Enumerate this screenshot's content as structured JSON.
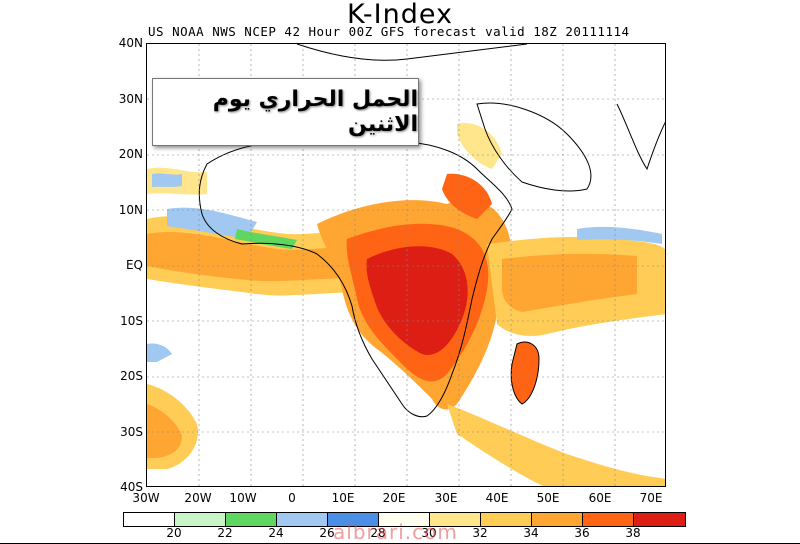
{
  "title": "K-Index",
  "subtitle": "US NOAA NWS NCEP 42 Hour 00Z GFS forecast valid 18Z 20111114",
  "overlay_text": "الحمل الحراري يوم الاثنين",
  "watermark": "albrari.com",
  "lat_labels": [
    "40N",
    "30N",
    "20N",
    "10N",
    "EQ",
    "10S",
    "20S",
    "30S",
    "40S"
  ],
  "lon_labels": [
    "30W",
    "20W",
    "10W",
    "0",
    "10E",
    "20E",
    "30E",
    "40E",
    "50E",
    "60E",
    "70E"
  ],
  "legend": {
    "colors": [
      "#ffffff",
      "#c8f5c8",
      "#5fd65f",
      "#a0c8f0",
      "#4a8ee6",
      "#fffff0",
      "#ffe68c",
      "#ffcc55",
      "#ffa532",
      "#ff6414",
      "#dc1e14"
    ],
    "labels": [
      "20",
      "22",
      "24",
      "26",
      "28",
      "30",
      "32",
      "34",
      "36",
      "38"
    ]
  },
  "map_colors": {
    "light_green": "#c8f5c8",
    "green": "#5fd65f",
    "light_blue": "#a0c8f0",
    "blue": "#4a8ee6",
    "cream": "#fffff0",
    "yellow": "#ffe68c",
    "light_orange": "#ffcc55",
    "orange": "#ffa532",
    "red_orange": "#ff6414",
    "red": "#dc1e14"
  }
}
